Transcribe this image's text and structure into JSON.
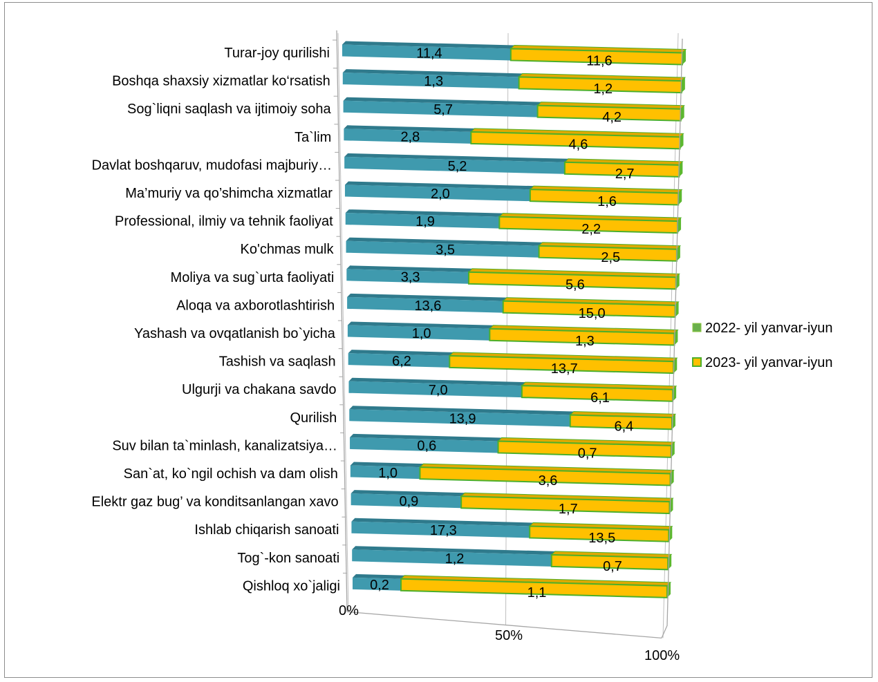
{
  "chart_data": {
    "type": "bar",
    "orientation": "horizontal",
    "stacked": "100%",
    "style": "3d",
    "categories": [
      "Turar-joy qurilishi",
      "Boshqa shaxsiy xizmatlar ko‘rsatish",
      "Sog`liqni saqlash va ijtimoiy soha",
      "Ta`lim",
      "Davlat boshqaruv, mudofasi majburiy…",
      "Ma’muriy va qo’shimcha xizmatlar",
      "Professional, ilmiy va tehnik faoliyat",
      "Ko'chmas mulk",
      "Moliya va sug`urta faoliyati",
      "Aloqa va axborotlashtirish",
      "Yashash va ovqatlanish bo`yicha",
      "Tashish va saqlash",
      "Ulgurji va chakana savdo",
      "Qurilish",
      "Suv bilan ta`minlash, kanalizatsiya…",
      "San`at, ko`ngil ochish va dam olish",
      "Elektr gaz bug’ va konditsanlangan xavo",
      "Ishlab chiqarish sanoati",
      "Tog`-kon sanoati",
      "Qishloq xo`jaligi"
    ],
    "series": [
      {
        "name": "2022- yil yanvar-iyun",
        "color": "#3f9aae",
        "values": [
          11.4,
          1.3,
          5.7,
          2.8,
          5.2,
          2.0,
          1.9,
          3.5,
          3.3,
          13.6,
          1.0,
          6.2,
          7.0,
          13.9,
          0.6,
          1.0,
          0.9,
          17.3,
          1.2,
          0.2
        ],
        "labels": [
          "11,4",
          "1,3",
          "5,7",
          "2,8",
          "5,2",
          "2,0",
          "1,9",
          "3,5",
          "3,3",
          "13,6",
          "1,0",
          "6,2",
          "7,0",
          "13,9",
          "0,6",
          "1,0",
          "0,9",
          "17,3",
          "1,2",
          "0,2"
        ]
      },
      {
        "name": "2023- yil yanvar-iyun",
        "color": "#ffc000",
        "values": [
          11.6,
          1.2,
          4.2,
          4.6,
          2.7,
          1.6,
          2.2,
          2.5,
          5.6,
          15.0,
          1.3,
          13.7,
          6.1,
          6.4,
          0.7,
          3.6,
          1.7,
          13.5,
          0.7,
          1.1
        ],
        "labels": [
          "11,6",
          "1,2",
          "4,2",
          "4,6",
          "2,7",
          "1,6",
          "2,2",
          "2,5",
          "5,6",
          "15,0",
          "1,3",
          "13,7",
          "6,1",
          "6,4",
          "0,7",
          "3,6",
          "1,7",
          "13,5",
          "0,7",
          "1,1"
        ]
      }
    ],
    "x_ticks": [
      "0%",
      "50%",
      "100%"
    ],
    "xlim": [
      0,
      100
    ],
    "legend_position": "right",
    "grid": true,
    "colors": {
      "series1_top": "#2f7a8c",
      "series2_border": "#4caf2a",
      "legend1_marker": "#6ab04c",
      "axis": "#a6a6a6",
      "gridline": "#bfbfbf"
    }
  }
}
